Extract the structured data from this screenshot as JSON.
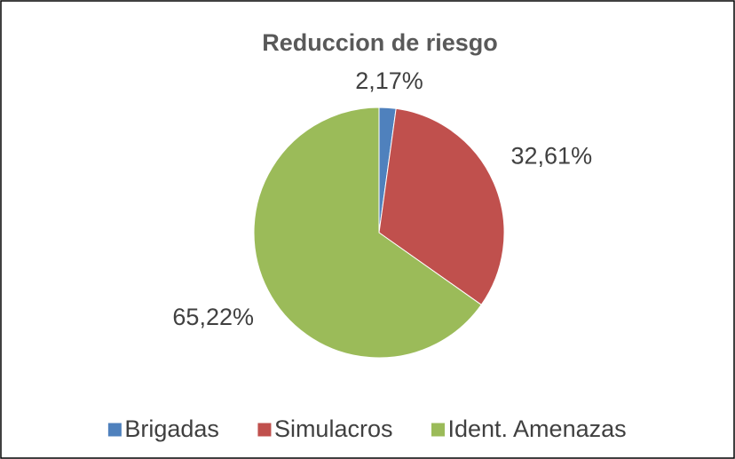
{
  "chart_data": {
    "type": "pie",
    "title": "Reduccion de riesgo",
    "categories": [
      "Brigadas",
      "Simulacros",
      "Ident. Amenazas"
    ],
    "values": [
      2.17,
      32.61,
      65.22
    ],
    "value_labels": [
      "2,17%",
      "32,61%",
      "65,22%"
    ],
    "colors": [
      "#4f81bd",
      "#c0504d",
      "#9bbb59"
    ],
    "legend": "bottom"
  }
}
